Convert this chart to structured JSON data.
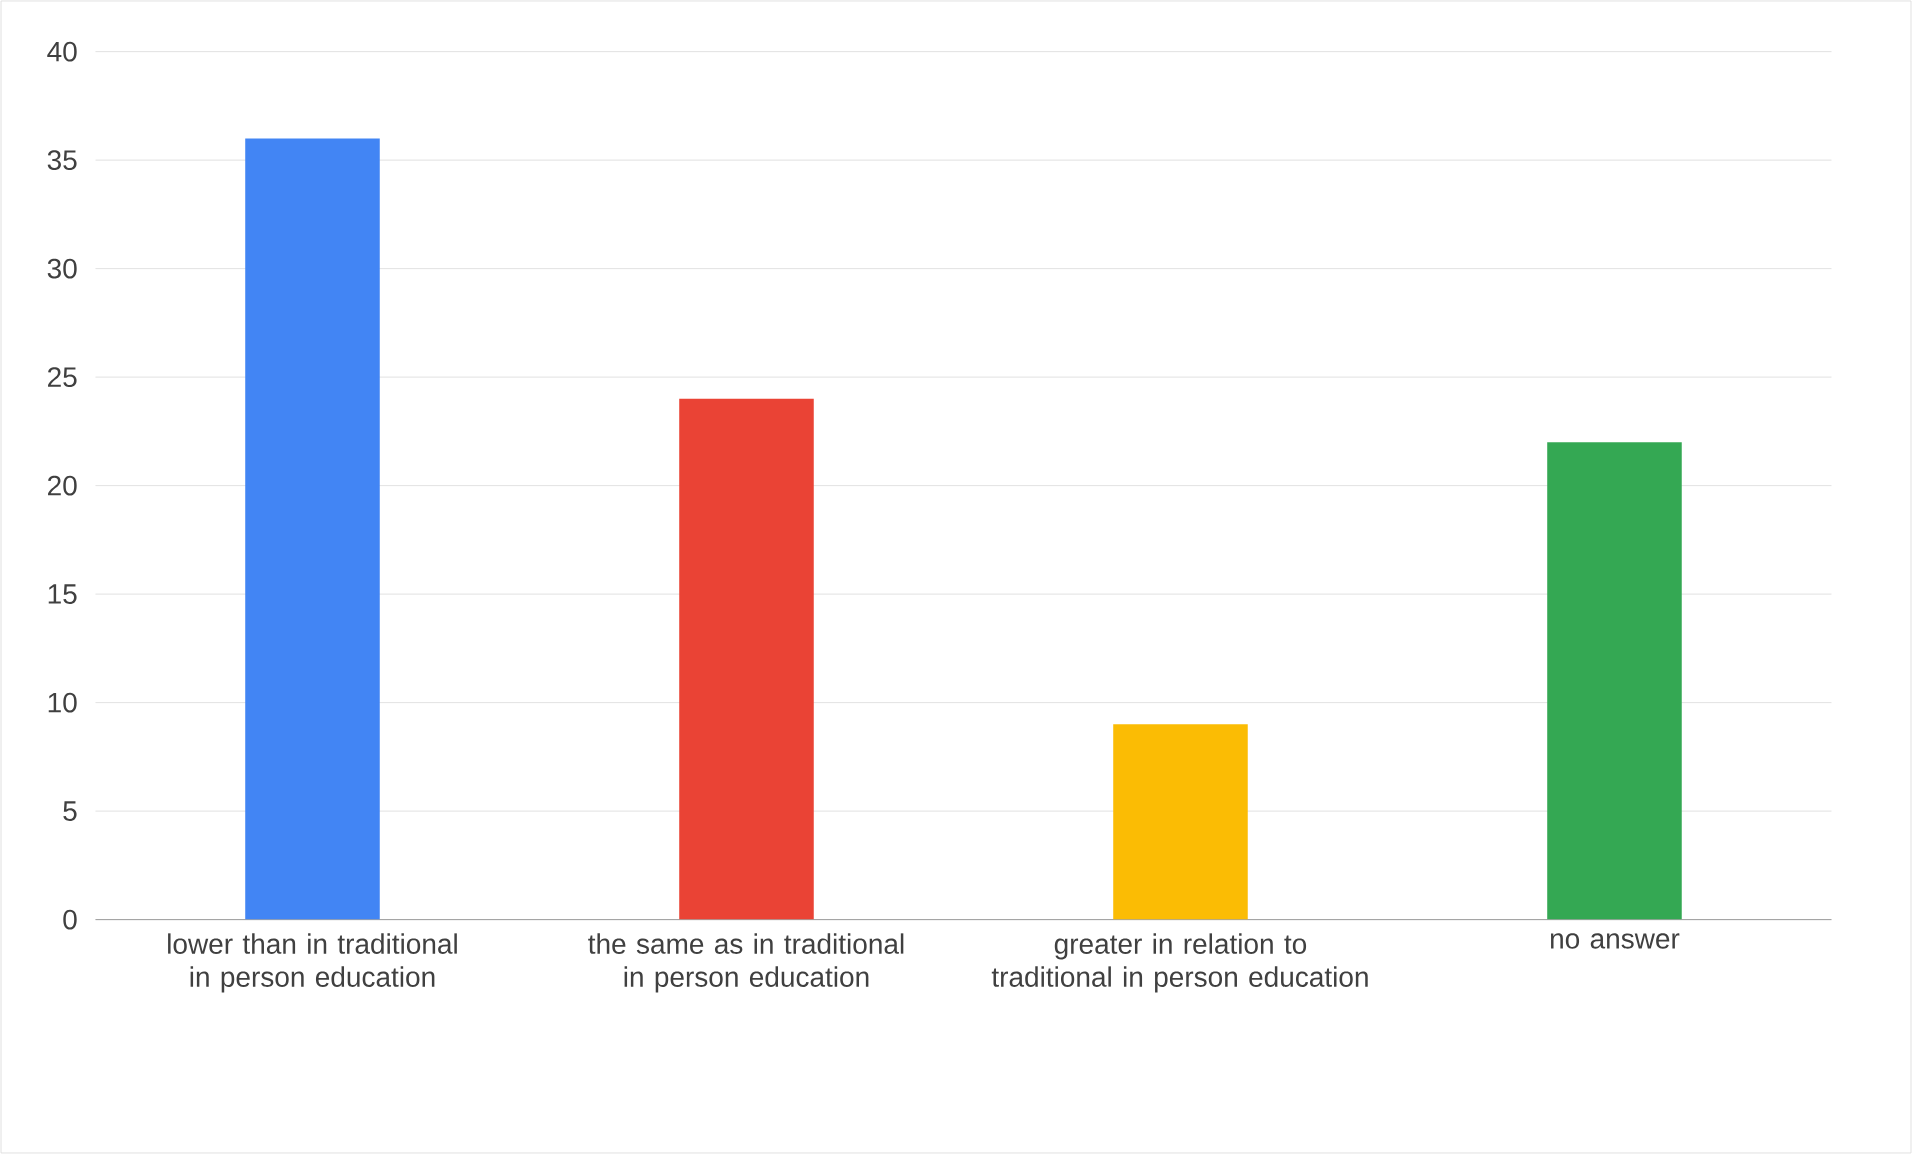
{
  "chart_data": {
    "type": "bar",
    "categories": [
      "lower than in traditional in person education",
      "the same as in traditional in person education",
      "greater in relation to traditional in person education",
      "no answer"
    ],
    "values": [
      36,
      24,
      9,
      22
    ],
    "colors": [
      "#4285f4",
      "#ea4335",
      "#fbbc04",
      "#34a853"
    ],
    "ylim": [
      0,
      40
    ],
    "yticks": [
      0,
      5,
      10,
      15,
      20,
      25,
      30,
      35,
      40
    ],
    "grid": "y"
  }
}
